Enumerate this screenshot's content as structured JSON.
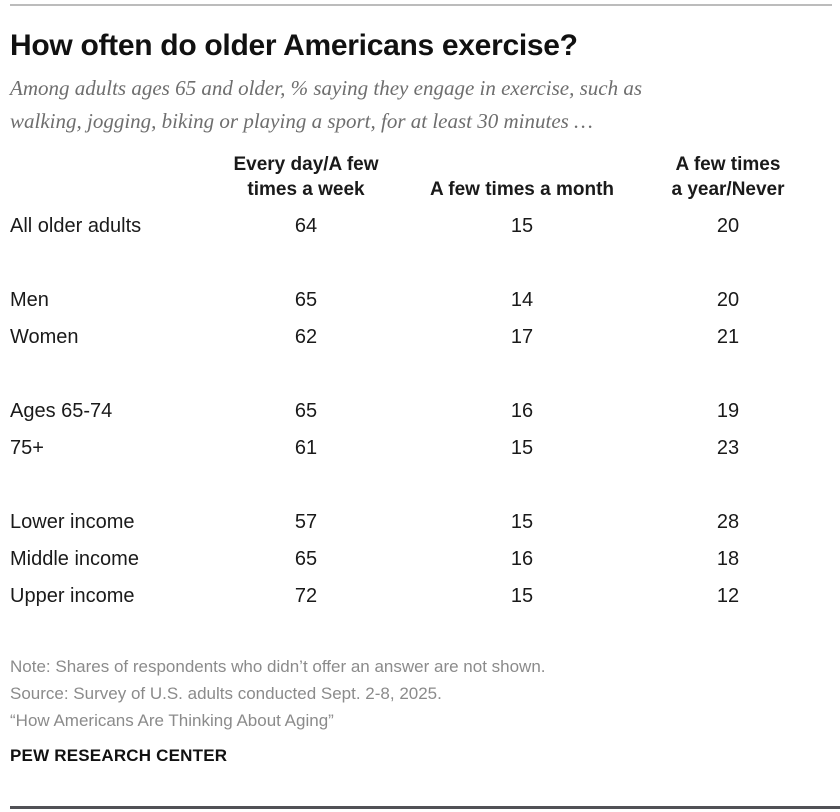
{
  "header": {
    "title": "How often do older Americans exercise?",
    "subtitle_line1": "Among adults ages 65 and older, % saying they engage in exercise, such as",
    "subtitle_line2": "walking, jogging, biking or playing a sport, for at least 30 minutes …"
  },
  "table": {
    "col_headers": {
      "col1_line1": "Every day/A few",
      "col1_line2": "times a week",
      "col2": "A few times a month",
      "col3_line1": "A few times",
      "col3_line2": "a year/Never"
    },
    "rows": [
      {
        "label": "All older adults",
        "values": [
          "64",
          "15",
          "20"
        ]
      },
      {
        "label": "Men",
        "values": [
          "65",
          "14",
          "20"
        ]
      },
      {
        "label": "Women",
        "values": [
          "62",
          "17",
          "21"
        ]
      },
      {
        "label": "Ages 65-74",
        "values": [
          "65",
          "16",
          "19"
        ]
      },
      {
        "label": "75+",
        "values": [
          "61",
          "15",
          "23"
        ]
      },
      {
        "label": "Lower income",
        "values": [
          "57",
          "15",
          "28"
        ]
      },
      {
        "label": "Middle income",
        "values": [
          "65",
          "16",
          "18"
        ]
      },
      {
        "label": "Upper income",
        "values": [
          "72",
          "15",
          "12"
        ]
      }
    ]
  },
  "footer": {
    "note": "Note: Shares of respondents who didn’t offer an answer are not shown.",
    "source": "Source: Survey of U.S. adults conducted Sept. 2-8, 2025.",
    "report_title": "“How Americans Are Thinking About Aging”",
    "brand": "PEW RESEARCH CENTER"
  },
  "chart_data": {
    "type": "table",
    "title": "How often do older Americans exercise?",
    "subtitle": "Among adults ages 65 and older, % saying they engage in exercise, such as walking, jogging, biking or playing a sport, for at least 30 minutes …",
    "columns": [
      "Every day/A few times a week",
      "A few times a month",
      "A few times a year/Never"
    ],
    "groups": [
      {
        "rows": [
          "All older adults"
        ]
      },
      {
        "rows": [
          "Men",
          "Women"
        ]
      },
      {
        "rows": [
          "Ages 65-74",
          "75+"
        ]
      },
      {
        "rows": [
          "Lower income",
          "Middle income",
          "Upper income"
        ]
      }
    ],
    "series": [
      {
        "name": "All older adults",
        "values": [
          64,
          15,
          20
        ]
      },
      {
        "name": "Men",
        "values": [
          65,
          14,
          20
        ]
      },
      {
        "name": "Women",
        "values": [
          62,
          17,
          21
        ]
      },
      {
        "name": "Ages 65-74",
        "values": [
          65,
          16,
          19
        ]
      },
      {
        "name": "75+",
        "values": [
          61,
          15,
          23
        ]
      },
      {
        "name": "Lower income",
        "values": [
          57,
          15,
          28
        ]
      },
      {
        "name": "Middle income",
        "values": [
          65,
          16,
          18
        ]
      },
      {
        "name": "Upper income",
        "values": [
          72,
          15,
          12
        ]
      }
    ],
    "unit": "%",
    "note": "Note: Shares of respondents who didn’t offer an answer are not shown.",
    "source": "Source: Survey of U.S. adults conducted Sept. 2-8, 2025.",
    "report": "“How Americans Are Thinking About Aging”",
    "brand": "PEW RESEARCH CENTER",
    "colors": {
      "text": "#1a1a1a",
      "subtitle_gray": "#6e6e6e",
      "footnote_gray": "#8b8b8b",
      "top_rule": "#bcbcbc",
      "bottom_rule": "#515156"
    }
  }
}
